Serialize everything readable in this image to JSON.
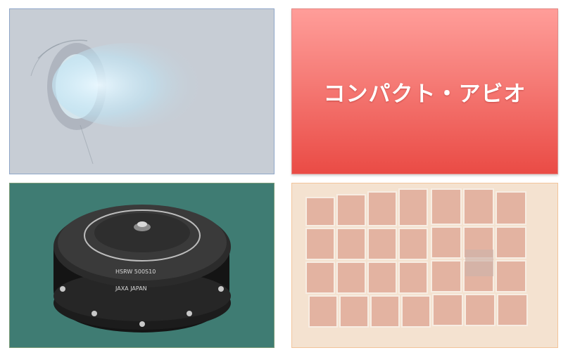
{
  "slide": {
    "title_card": {
      "text": "コンパクト・アビオ",
      "color": "#ea4b45"
    },
    "photos": {
      "thruster": {
        "alt": "thruster-photo"
      },
      "wheel": {
        "alt": "reaction-wheel-photo",
        "label_lines": [
          "HSRW 500S10",
          "JAXA JAPAN"
        ]
      },
      "solar": {
        "alt": "solar-array-photo"
      }
    }
  }
}
